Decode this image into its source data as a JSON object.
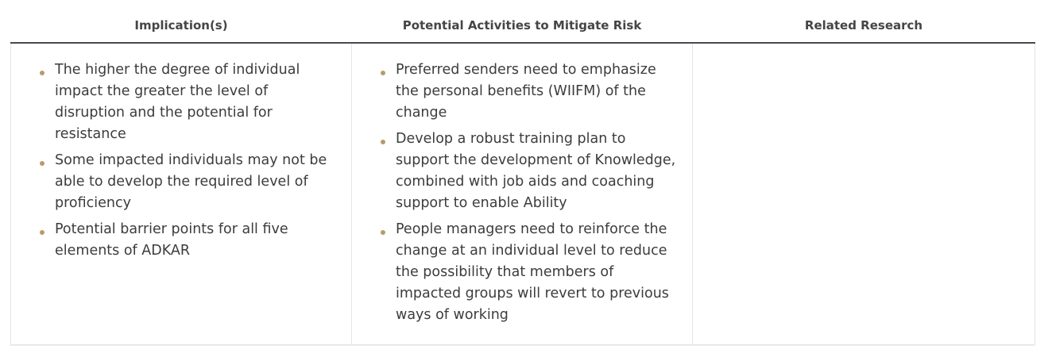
{
  "table": {
    "headers": [
      "Implication(s)",
      "Potential Activities to Mitigate Risk",
      "Related Research"
    ],
    "implications": [
      "The higher the degree of individual impact the greater the level of disruption and the potential for resistance",
      "Some impacted individuals may not be able to develop the required level of proficiency",
      "Potential barrier points for all five elements of ADKAR"
    ],
    "activities": [
      "Preferred senders need to emphasize the personal benefits (WIIFM) of the change",
      "Develop a robust training plan to support the development of Knowledge, combined with job aids and coaching support to enable Ability",
      "People managers need to reinforce the change at an individual level to reduce the possibility that members of impacted groups will revert to previous ways of working"
    ],
    "related_research": []
  },
  "colors": {
    "bullet": "#b99a6b",
    "header_rule": "#444a4f",
    "cell_border": "#e4e4e4",
    "text": "#3c3c3c"
  }
}
